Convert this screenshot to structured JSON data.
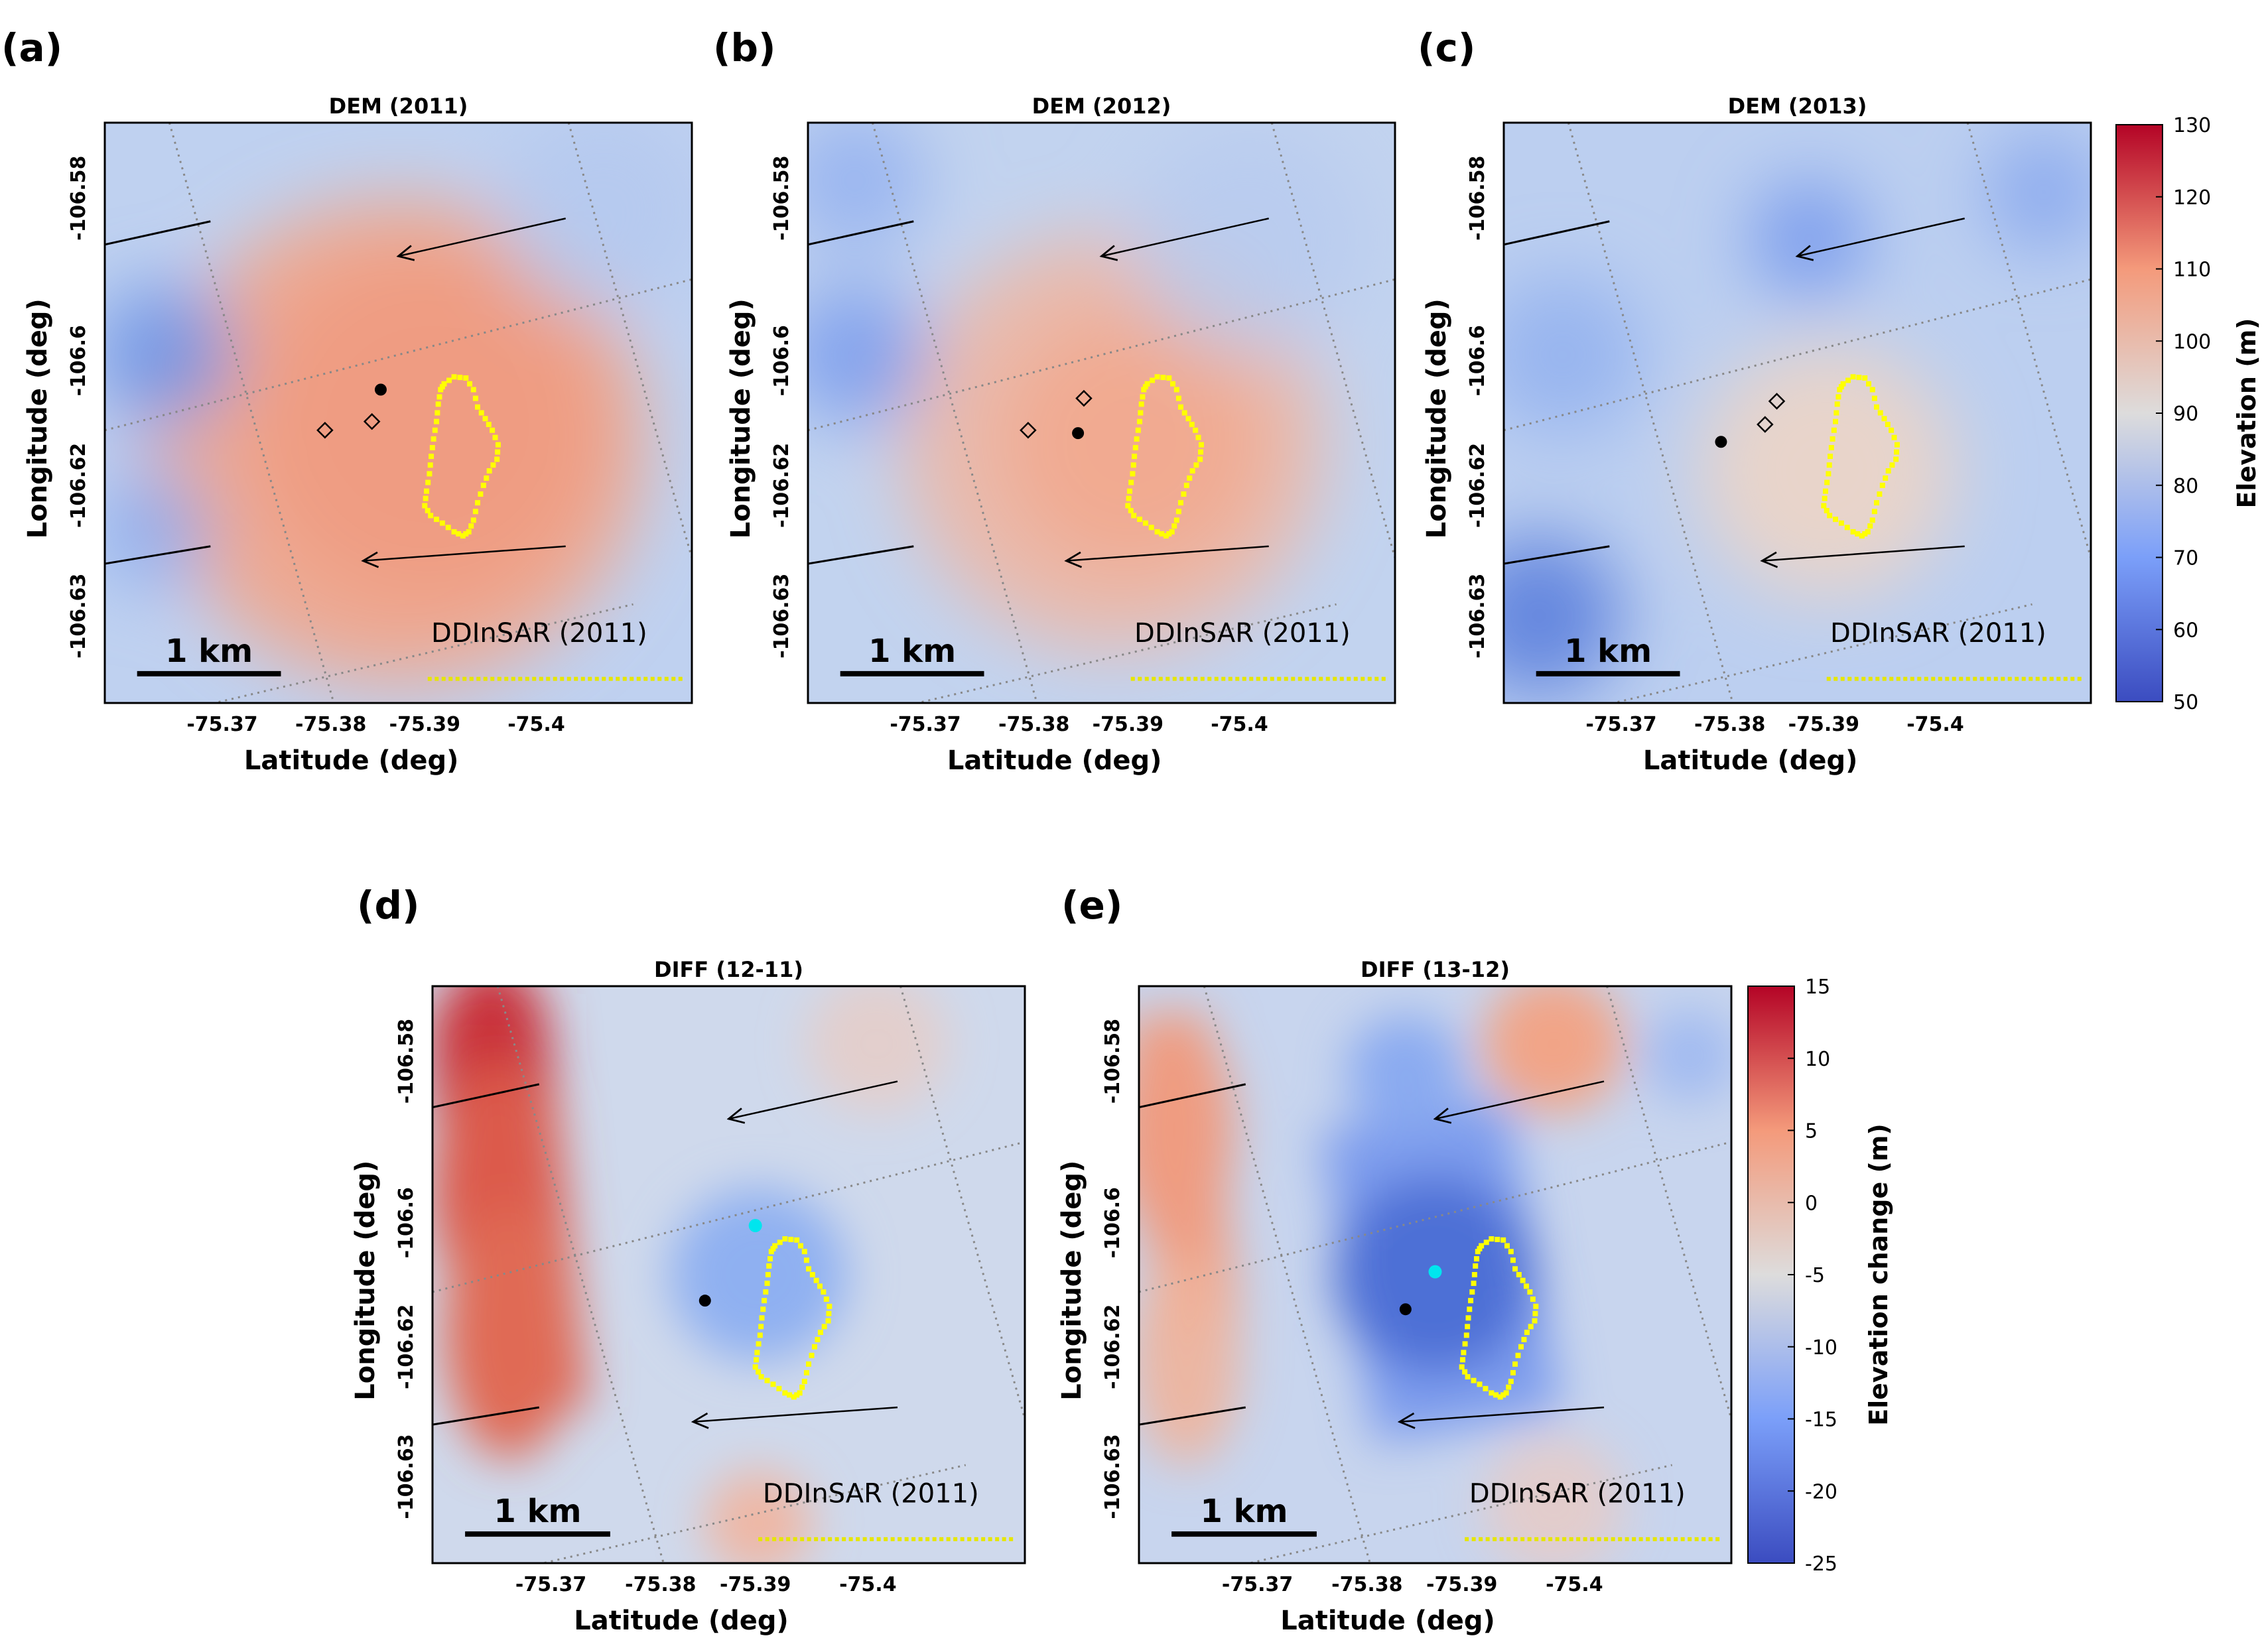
{
  "chart_data": [
    {
      "type": "heatmap",
      "panel_label": "(a)",
      "title": "DEM (2011)",
      "xlabel": "Latitude (deg)",
      "ylabel": "Longitude (deg)",
      "x_ticks": [
        "-75.37",
        "-75.38",
        "-75.39",
        "-75.4"
      ],
      "y_ticks": [
        "-106.58",
        "-106.6",
        "-106.62",
        "-106.63"
      ],
      "scalebar": "1 km",
      "legend": "DDInSAR (2011)",
      "colorbar_ref": "elevation",
      "black_dot": true,
      "cyan_dot": false,
      "diamonds": 2
    },
    {
      "type": "heatmap",
      "panel_label": "(b)",
      "title": "DEM (2012)",
      "xlabel": "Latitude (deg)",
      "ylabel": "Longitude (deg)",
      "x_ticks": [
        "-75.37",
        "-75.38",
        "-75.39",
        "-75.4"
      ],
      "y_ticks": [
        "-106.58",
        "-106.6",
        "-106.62",
        "-106.63"
      ],
      "scalebar": "1 km",
      "legend": "DDInSAR (2011)",
      "colorbar_ref": "elevation",
      "black_dot": true,
      "cyan_dot": false,
      "diamonds": 2
    },
    {
      "type": "heatmap",
      "panel_label": "(c)",
      "title": "DEM (2013)",
      "xlabel": "Latitude (deg)",
      "ylabel": "Longitude (deg)",
      "x_ticks": [
        "-75.37",
        "-75.38",
        "-75.39",
        "-75.4"
      ],
      "y_ticks": [
        "-106.58",
        "-106.6",
        "-106.62",
        "-106.63"
      ],
      "scalebar": "1 km",
      "legend": "DDInSAR (2011)",
      "colorbar_ref": "elevation",
      "black_dot": true,
      "cyan_dot": false,
      "diamonds": 2
    },
    {
      "type": "heatmap",
      "panel_label": "(d)",
      "title": "DIFF (12-11)",
      "xlabel": "Latitude (deg)",
      "ylabel": "Longitude (deg)",
      "x_ticks": [
        "-75.37",
        "-75.38",
        "-75.39",
        "-75.4"
      ],
      "y_ticks": [
        "-106.58",
        "-106.6",
        "-106.62",
        "-106.63"
      ],
      "scalebar": "1 km",
      "legend": "DDInSAR (2011)",
      "colorbar_ref": "change",
      "black_dot": true,
      "cyan_dot": true,
      "diamonds": 0
    },
    {
      "type": "heatmap",
      "panel_label": "(e)",
      "title": "DIFF (13-12)",
      "xlabel": "Latitude (deg)",
      "ylabel": "Longitude (deg)",
      "x_ticks": [
        "-75.37",
        "-75.38",
        "-75.39",
        "-75.4"
      ],
      "y_ticks": [
        "-106.58",
        "-106.6",
        "-106.62",
        "-106.63"
      ],
      "scalebar": "1 km",
      "legend": "DDInSAR (2011)",
      "colorbar_ref": "change",
      "black_dot": true,
      "cyan_dot": true,
      "diamonds": 0
    }
  ],
  "colorbars": {
    "elevation": {
      "label": "Elevation (m)",
      "range": [
        50,
        130
      ],
      "ticks": [
        "130",
        "120",
        "110",
        "100",
        "90",
        "80",
        "70",
        "60",
        "50"
      ]
    },
    "change": {
      "label": "Elevation change (m)",
      "range": [
        -25,
        15
      ],
      "ticks": [
        "15",
        "10",
        "5",
        "0",
        "-5",
        "-10",
        "-15",
        "-20",
        "-25"
      ]
    }
  },
  "colors": {
    "low": "#3b4cc0",
    "mid": "#dddddd",
    "high": "#b40426",
    "outline": "#ffff00",
    "cyan_marker": "#00e5ee",
    "grid": "#888888"
  }
}
